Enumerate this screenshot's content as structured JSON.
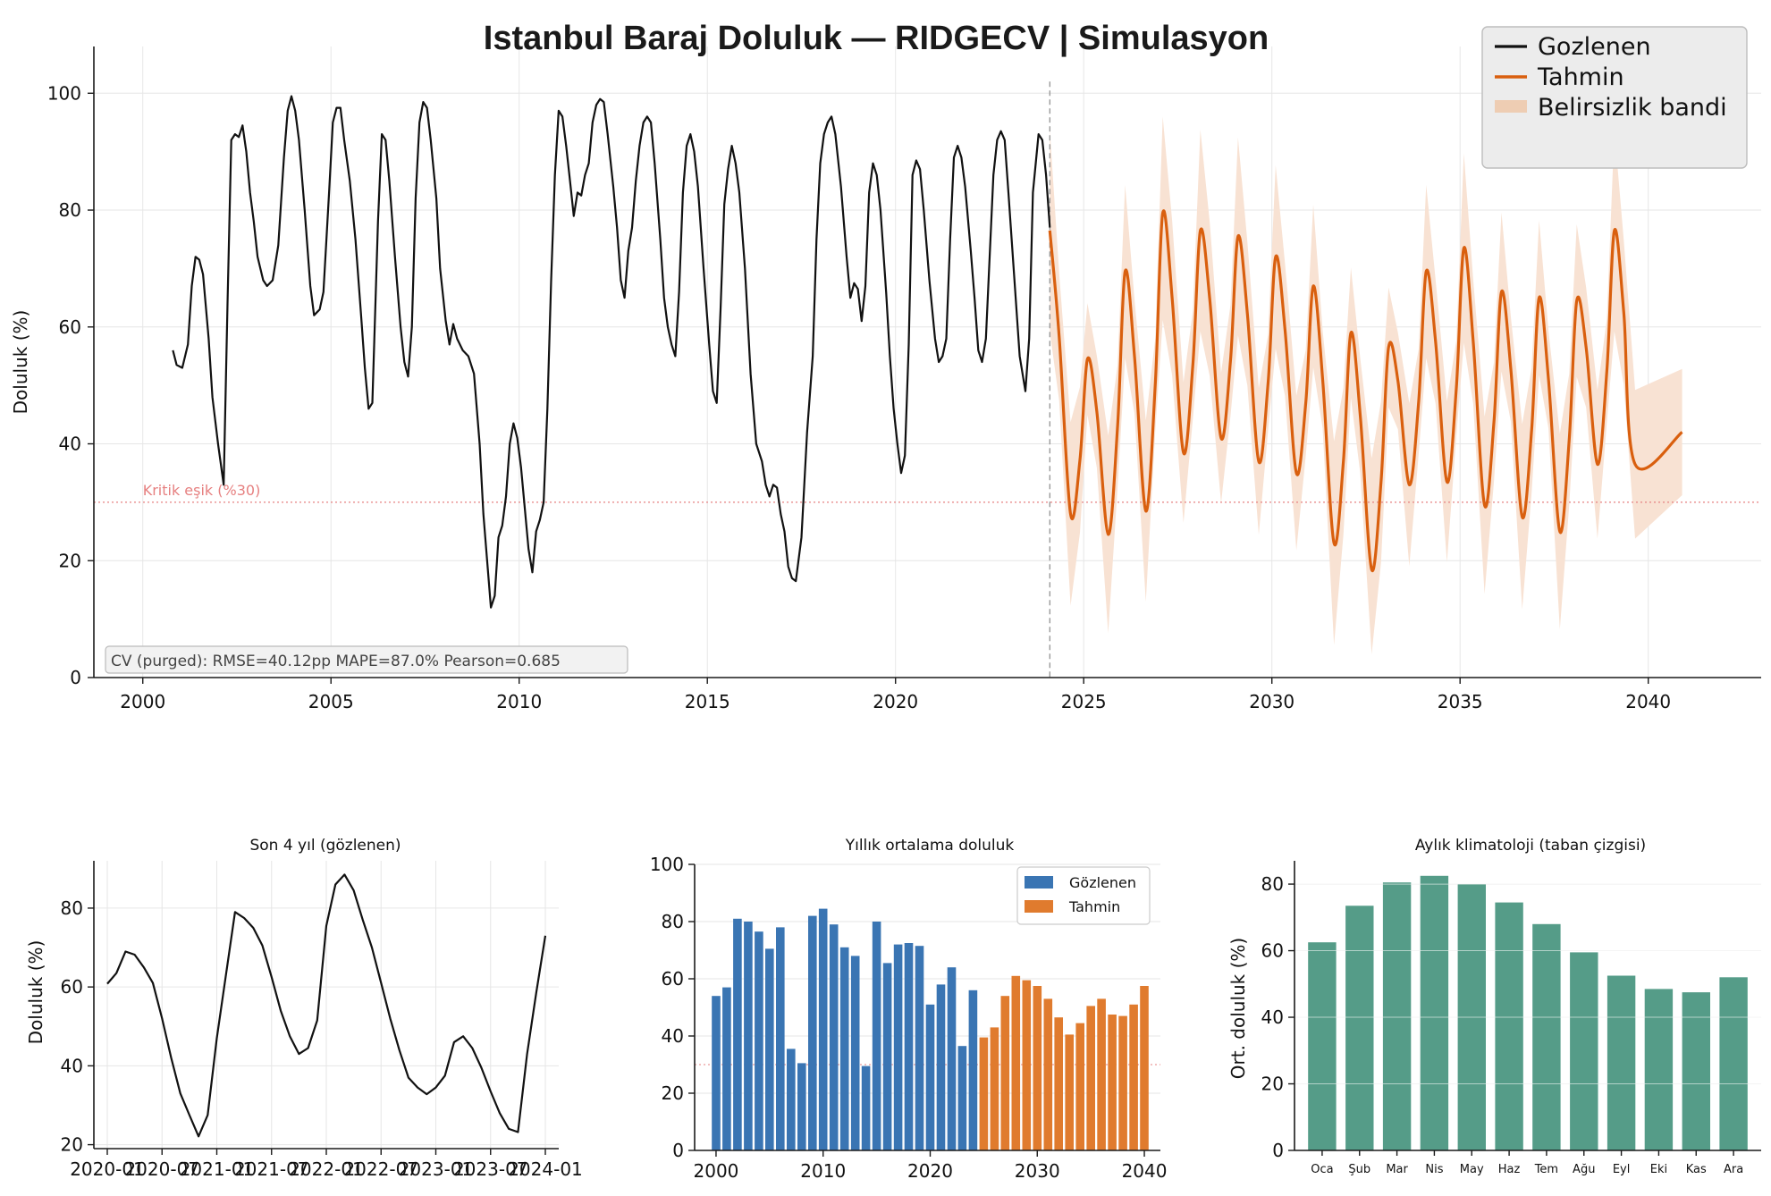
{
  "colors": {
    "observed": "#111111",
    "forecast": "#d95f0e",
    "band": "#f8e2d3",
    "band_legend": "#eecdb3",
    "bar_observed": "#3a75b3",
    "bar_forecast": "#e07b2e",
    "climatology": "#559c88",
    "threshold": "#e68080"
  },
  "chart_data": [
    {
      "type": "line",
      "title": "Istanbul Baraj Doluluk — RIDGECV | Simulasyon",
      "ylabel": "Doluluk (%)",
      "xlabel": "",
      "xlim": [
        1998.7,
        2043.0
      ],
      "ylim": [
        0,
        108
      ],
      "xticks": [
        2000,
        2005,
        2010,
        2015,
        2020,
        2025,
        2030,
        2035,
        2040
      ],
      "yticks": [
        0,
        20,
        40,
        60,
        80,
        100
      ],
      "grid": true,
      "legend_position": "top-right",
      "legend": [
        "Gozlenen",
        "Tahmin",
        "Belirsizlik bandi"
      ],
      "threshold": {
        "value": 30,
        "label": "Kritik eşik (%30)"
      },
      "forecast_start": 2024.1,
      "cv_text": "CV (purged): RMSE=40.12pp  MAPE=87.0%  Pearson=0.685",
      "series": [
        {
          "name": "Gozlenen",
          "points": [
            [
              2000.8,
              56
            ],
            [
              2000.9,
              53.5
            ],
            [
              2001.05,
              53
            ],
            [
              2001.2,
              57
            ],
            [
              2001.3,
              67
            ],
            [
              2001.4,
              72
            ],
            [
              2001.5,
              71.5
            ],
            [
              2001.6,
              69
            ],
            [
              2001.75,
              58
            ],
            [
              2001.85,
              48
            ],
            [
              2002.0,
              40
            ],
            [
              2002.15,
              33
            ],
            [
              2002.25,
              64
            ],
            [
              2002.35,
              92
            ],
            [
              2002.45,
              93
            ],
            [
              2002.55,
              92.5
            ],
            [
              2002.65,
              94.5
            ],
            [
              2002.75,
              90
            ],
            [
              2002.85,
              83
            ],
            [
              2002.95,
              78
            ],
            [
              2003.05,
              72
            ],
            [
              2003.2,
              68
            ],
            [
              2003.3,
              67
            ],
            [
              2003.45,
              68
            ],
            [
              2003.6,
              74
            ],
            [
              2003.75,
              89
            ],
            [
              2003.85,
              97
            ],
            [
              2003.95,
              99.5
            ],
            [
              2004.05,
              97
            ],
            [
              2004.15,
              92
            ],
            [
              2004.3,
              80
            ],
            [
              2004.45,
              67
            ],
            [
              2004.55,
              62
            ],
            [
              2004.7,
              63
            ],
            [
              2004.8,
              66
            ],
            [
              2004.95,
              83
            ],
            [
              2005.05,
              95
            ],
            [
              2005.15,
              97.5
            ],
            [
              2005.25,
              97.5
            ],
            [
              2005.35,
              92
            ],
            [
              2005.5,
              85
            ],
            [
              2005.65,
              75
            ],
            [
              2005.8,
              62
            ],
            [
              2005.9,
              53
            ],
            [
              2006.0,
              46
            ],
            [
              2006.1,
              47
            ],
            [
              2006.25,
              78
            ],
            [
              2006.35,
              93
            ],
            [
              2006.45,
              92
            ],
            [
              2006.55,
              85
            ],
            [
              2006.7,
              72
            ],
            [
              2006.85,
              60
            ],
            [
              2006.95,
              54
            ],
            [
              2007.05,
              51.5
            ],
            [
              2007.15,
              60
            ],
            [
              2007.25,
              82
            ],
            [
              2007.35,
              95
            ],
            [
              2007.45,
              98.5
            ],
            [
              2007.55,
              97.5
            ],
            [
              2007.65,
              92
            ],
            [
              2007.8,
              82
            ],
            [
              2007.9,
              70
            ],
            [
              2008.05,
              61
            ],
            [
              2008.15,
              57
            ],
            [
              2008.25,
              60.5
            ],
            [
              2008.35,
              58
            ],
            [
              2008.5,
              56
            ],
            [
              2008.65,
              55
            ],
            [
              2008.8,
              52
            ],
            [
              2008.95,
              40
            ],
            [
              2009.05,
              28
            ],
            [
              2009.15,
              20
            ],
            [
              2009.25,
              12
            ],
            [
              2009.35,
              14
            ],
            [
              2009.45,
              24
            ],
            [
              2009.55,
              26
            ],
            [
              2009.65,
              31
            ],
            [
              2009.75,
              40
            ],
            [
              2009.85,
              43.5
            ],
            [
              2009.95,
              41
            ],
            [
              2010.05,
              36
            ],
            [
              2010.15,
              29
            ],
            [
              2010.25,
              22
            ],
            [
              2010.35,
              18
            ],
            [
              2010.45,
              25
            ],
            [
              2010.55,
              27
            ],
            [
              2010.65,
              30
            ],
            [
              2010.75,
              46
            ],
            [
              2010.85,
              68
            ],
            [
              2010.95,
              86
            ],
            [
              2011.05,
              97
            ],
            [
              2011.15,
              96
            ],
            [
              2011.25,
              91
            ],
            [
              2011.35,
              85
            ],
            [
              2011.45,
              79
            ],
            [
              2011.55,
              83
            ],
            [
              2011.65,
              82.5
            ],
            [
              2011.75,
              86
            ],
            [
              2011.85,
              88
            ],
            [
              2011.95,
              95
            ],
            [
              2012.05,
              98
            ],
            [
              2012.15,
              99
            ],
            [
              2012.25,
              98.5
            ],
            [
              2012.35,
              93
            ],
            [
              2012.5,
              84
            ],
            [
              2012.6,
              77
            ],
            [
              2012.7,
              68
            ],
            [
              2012.8,
              65
            ],
            [
              2012.9,
              73
            ],
            [
              2013.0,
              77
            ],
            [
              2013.1,
              85
            ],
            [
              2013.2,
              91
            ],
            [
              2013.3,
              95
            ],
            [
              2013.4,
              96
            ],
            [
              2013.5,
              95
            ],
            [
              2013.6,
              88
            ],
            [
              2013.75,
              75
            ],
            [
              2013.85,
              65
            ],
            [
              2013.95,
              60
            ],
            [
              2014.05,
              57
            ],
            [
              2014.15,
              55
            ],
            [
              2014.25,
              66
            ],
            [
              2014.35,
              83
            ],
            [
              2014.45,
              91
            ],
            [
              2014.55,
              93
            ],
            [
              2014.65,
              90
            ],
            [
              2014.75,
              84
            ],
            [
              2014.9,
              70
            ],
            [
              2015.05,
              57
            ],
            [
              2015.15,
              49
            ],
            [
              2015.25,
              47
            ],
            [
              2015.35,
              63
            ],
            [
              2015.45,
              81
            ],
            [
              2015.55,
              87
            ],
            [
              2015.65,
              91
            ],
            [
              2015.75,
              88
            ],
            [
              2015.85,
              83
            ],
            [
              2016.0,
              70
            ],
            [
              2016.15,
              52
            ],
            [
              2016.3,
              40
            ],
            [
              2016.45,
              37
            ],
            [
              2016.55,
              33
            ],
            [
              2016.65,
              31
            ],
            [
              2016.75,
              33
            ],
            [
              2016.85,
              32.5
            ],
            [
              2016.95,
              28
            ],
            [
              2017.05,
              25
            ],
            [
              2017.15,
              19
            ],
            [
              2017.25,
              17
            ],
            [
              2017.35,
              16.5
            ],
            [
              2017.5,
              24
            ],
            [
              2017.65,
              42
            ],
            [
              2017.8,
              55
            ],
            [
              2017.9,
              75
            ],
            [
              2018.0,
              88
            ],
            [
              2018.1,
              93
            ],
            [
              2018.2,
              95
            ],
            [
              2018.3,
              96
            ],
            [
              2018.4,
              93
            ],
            [
              2018.55,
              84
            ],
            [
              2018.7,
              72
            ],
            [
              2018.8,
              65
            ],
            [
              2018.9,
              67.5
            ],
            [
              2019.0,
              66.5
            ],
            [
              2019.1,
              61
            ],
            [
              2019.2,
              67
            ],
            [
              2019.3,
              83
            ],
            [
              2019.4,
              88
            ],
            [
              2019.5,
              86
            ],
            [
              2019.6,
              80
            ],
            [
              2019.75,
              66
            ],
            [
              2019.85,
              55
            ],
            [
              2019.95,
              46
            ],
            [
              2020.05,
              40
            ],
            [
              2020.15,
              35
            ],
            [
              2020.25,
              38
            ],
            [
              2020.35,
              57
            ],
            [
              2020.45,
              86
            ],
            [
              2020.55,
              88.5
            ],
            [
              2020.65,
              87
            ],
            [
              2020.75,
              80
            ],
            [
              2020.9,
              68
            ],
            [
              2021.05,
              58
            ],
            [
              2021.15,
              54
            ],
            [
              2021.25,
              55
            ],
            [
              2021.35,
              58
            ],
            [
              2021.45,
              75
            ],
            [
              2021.55,
              89
            ],
            [
              2021.65,
              91
            ],
            [
              2021.75,
              89
            ],
            [
              2021.85,
              84
            ],
            [
              2022.0,
              73
            ],
            [
              2022.1,
              65
            ],
            [
              2022.2,
              56
            ],
            [
              2022.3,
              54
            ],
            [
              2022.4,
              58
            ],
            [
              2022.5,
              72
            ],
            [
              2022.6,
              86
            ],
            [
              2022.7,
              92
            ],
            [
              2022.8,
              93.5
            ],
            [
              2022.9,
              92
            ],
            [
              2023.0,
              83
            ],
            [
              2023.15,
              69
            ],
            [
              2023.3,
              55
            ],
            [
              2023.45,
              49
            ],
            [
              2023.55,
              58
            ],
            [
              2023.65,
              83
            ],
            [
              2023.8,
              93
            ],
            [
              2023.9,
              92
            ],
            [
              2024.0,
              86
            ],
            [
              2024.1,
              77
            ]
          ]
        }
      ]
    },
    {
      "type": "line",
      "title": "Son 4 yıl (gözlenen)",
      "ylabel": "Doluluk (%)",
      "xlabel": "",
      "xticks": [
        "2020-01",
        "2020-07",
        "2021-01",
        "2021-07",
        "2022-01",
        "2022-07",
        "2023-01",
        "2023-07",
        "2024-01"
      ],
      "yticks": [
        20,
        40,
        60,
        80
      ],
      "ylim": [
        19,
        92
      ],
      "grid": true,
      "values": [
        60.8,
        63.5,
        69,
        68.2,
        65,
        61,
        52,
        42,
        33,
        27.5,
        22.1,
        27.5,
        47,
        63,
        79,
        77.5,
        75,
        70.5,
        62.5,
        54,
        47.5,
        43,
        44.5,
        51.5,
        75.5,
        86,
        88.5,
        84.5,
        77,
        70,
        61,
        52,
        44,
        37,
        34.5,
        32.8,
        34.5,
        37.5,
        46,
        47.5,
        44.5,
        39.5,
        33.5,
        28,
        24,
        23.2,
        43,
        58.5,
        73
      ]
    },
    {
      "type": "bar",
      "title": "Yıllık ortalama doluluk",
      "ylim": [
        0,
        100
      ],
      "yticks": [
        0,
        20,
        40,
        60,
        80,
        100
      ],
      "xticks": [
        2000,
        2010,
        2020,
        2030,
        2040
      ],
      "grid": true,
      "legend_position": "top-right",
      "legend": [
        "Gözlenen",
        "Tahmin"
      ],
      "threshold": 30,
      "series": [
        {
          "name": "Gözlenen",
          "x": [
            2000,
            2001,
            2002,
            2003,
            2004,
            2005,
            2006,
            2007,
            2008,
            2009,
            2010,
            2011,
            2012,
            2013,
            2014,
            2015,
            2016,
            2017,
            2018,
            2019,
            2020,
            2021,
            2022,
            2023,
            2024
          ],
          "values": [
            54,
            57,
            81,
            80,
            76.5,
            70.5,
            78,
            35.5,
            30.5,
            82,
            84.5,
            79,
            71,
            68,
            29.5,
            80,
            65.5,
            72,
            72.5,
            71.5,
            51,
            58,
            64,
            36.5,
            56
          ]
        },
        {
          "name": "Tahmin",
          "x": [
            2025,
            2026,
            2027,
            2028,
            2029,
            2030,
            2031,
            2032,
            2033,
            2034,
            2035,
            2036,
            2037,
            2038,
            2039,
            2040
          ],
          "values": [
            39.5,
            43,
            54,
            61,
            59.5,
            57.5,
            53,
            46.5,
            40.5,
            44.5,
            50.5,
            53,
            47.5,
            47,
            51,
            57.5
          ]
        }
      ]
    },
    {
      "type": "bar",
      "title": "Aylık klimatoloji (taban çizgisi)",
      "ylabel": "Ort. doluluk (%)",
      "ylim": [
        0,
        87
      ],
      "yticks": [
        0,
        20,
        40,
        60,
        80
      ],
      "grid": true,
      "categories": [
        "Oca",
        "Şub",
        "Mar",
        "Nis",
        "May",
        "Haz",
        "Tem",
        "Ağu",
        "Eyl",
        "Eki",
        "Kas",
        "Ara"
      ],
      "values": [
        62.5,
        73.5,
        80.5,
        82.5,
        80,
        74.5,
        68,
        59.5,
        52.5,
        48.5,
        47.5,
        52
      ]
    }
  ]
}
